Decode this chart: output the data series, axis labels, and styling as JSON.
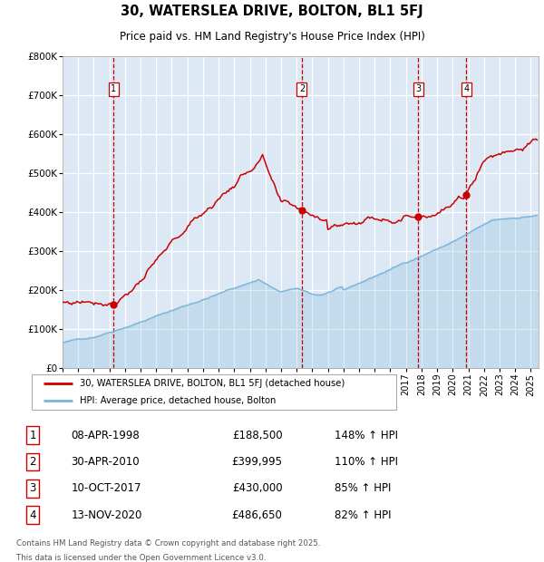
{
  "title": "30, WATERSLEA DRIVE, BOLTON, BL1 5FJ",
  "subtitle": "Price paid vs. HM Land Registry's House Price Index (HPI)",
  "legend_line1": "30, WATERSLEA DRIVE, BOLTON, BL1 5FJ (detached house)",
  "legend_line2": "HPI: Average price, detached house, Bolton",
  "footer1": "Contains HM Land Registry data © Crown copyright and database right 2025.",
  "footer2": "This data is licensed under the Open Government Licence v3.0.",
  "transactions": [
    {
      "num": 1,
      "date": "08-APR-1998",
      "price": "£188,500",
      "pct": "148% ↑ HPI",
      "year": 1998.27,
      "price_val": 188500
    },
    {
      "num": 2,
      "date": "30-APR-2010",
      "price": "£399,995",
      "pct": "110% ↑ HPI",
      "year": 2010.33,
      "price_val": 399995
    },
    {
      "num": 3,
      "date": "10-OCT-2017",
      "price": "£430,000",
      "pct": "85% ↑ HPI",
      "year": 2017.78,
      "price_val": 430000
    },
    {
      "num": 4,
      "date": "13-NOV-2020",
      "price": "£486,650",
      "pct": "82% ↑ HPI",
      "year": 2020.87,
      "price_val": 486650
    }
  ],
  "hpi_color": "#7ab4d8",
  "price_color": "#cc0000",
  "bg_color": "#dce9f5",
  "grid_color": "#ffffff",
  "dashed_color": "#cc0000",
  "ylim": [
    0,
    800000
  ],
  "xlim_start": 1995.0,
  "xlim_end": 2025.5,
  "yticks": [
    0,
    100000,
    200000,
    300000,
    400000,
    500000,
    600000,
    700000,
    800000
  ],
  "ylabels": [
    "£0",
    "£100K",
    "£200K",
    "£300K",
    "£400K",
    "£500K",
    "£600K",
    "£700K",
    "£800K"
  ]
}
